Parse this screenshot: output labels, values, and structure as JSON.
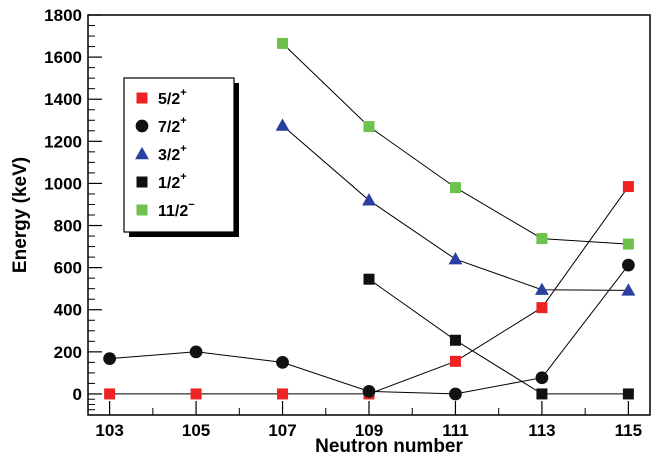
{
  "chart_data": {
    "type": "line",
    "title": "",
    "xlabel": "Neutron number",
    "ylabel": "Energy (keV)",
    "xlim": [
      102.5,
      115.5
    ],
    "ylim": [
      -100,
      1800
    ],
    "x_ticks": [
      103,
      105,
      107,
      109,
      111,
      113,
      115
    ],
    "x_tick_labels": [
      "103",
      "105",
      "107",
      "109",
      "111",
      "113",
      "115"
    ],
    "y_ticks": [
      0,
      200,
      400,
      600,
      800,
      1000,
      1200,
      1400,
      1600,
      1800
    ],
    "y_tick_labels": [
      "0",
      "200",
      "400",
      "600",
      "800",
      "1000",
      "1200",
      "1400",
      "1600",
      "1800"
    ],
    "grid": false,
    "legend_position": "top-left",
    "series": [
      {
        "name": "5/2",
        "parity": "+",
        "marker": "square",
        "color": "#ee2222",
        "points": [
          [
            103,
            0
          ],
          [
            105,
            0
          ],
          [
            107,
            0
          ],
          [
            109,
            0
          ],
          [
            111,
            155
          ],
          [
            113,
            410
          ],
          [
            115,
            985
          ]
        ]
      },
      {
        "name": "7/2",
        "parity": "+",
        "marker": "circle",
        "color": "#111111",
        "points": [
          [
            103,
            168
          ],
          [
            105,
            200
          ],
          [
            107,
            150
          ],
          [
            109,
            12
          ],
          [
            111,
            0
          ],
          [
            113,
            77
          ],
          [
            115,
            612
          ]
        ]
      },
      {
        "name": "3/2",
        "parity": "+",
        "marker": "triangle",
        "color": "#2a3fa0",
        "points": [
          [
            107,
            1275
          ],
          [
            109,
            920
          ],
          [
            111,
            640
          ],
          [
            113,
            495
          ],
          [
            115,
            492
          ]
        ]
      },
      {
        "name": "1/2",
        "parity": "+",
        "marker": "square",
        "color": "#111111",
        "points": [
          [
            109,
            545
          ],
          [
            111,
            255
          ],
          [
            113,
            0
          ],
          [
            115,
            0
          ]
        ]
      },
      {
        "name": "11/2",
        "parity": "−",
        "marker": "square",
        "color": "#6cc24a",
        "points": [
          [
            107,
            1665
          ],
          [
            109,
            1270
          ],
          [
            111,
            980
          ],
          [
            113,
            738
          ],
          [
            115,
            712
          ]
        ]
      }
    ]
  }
}
